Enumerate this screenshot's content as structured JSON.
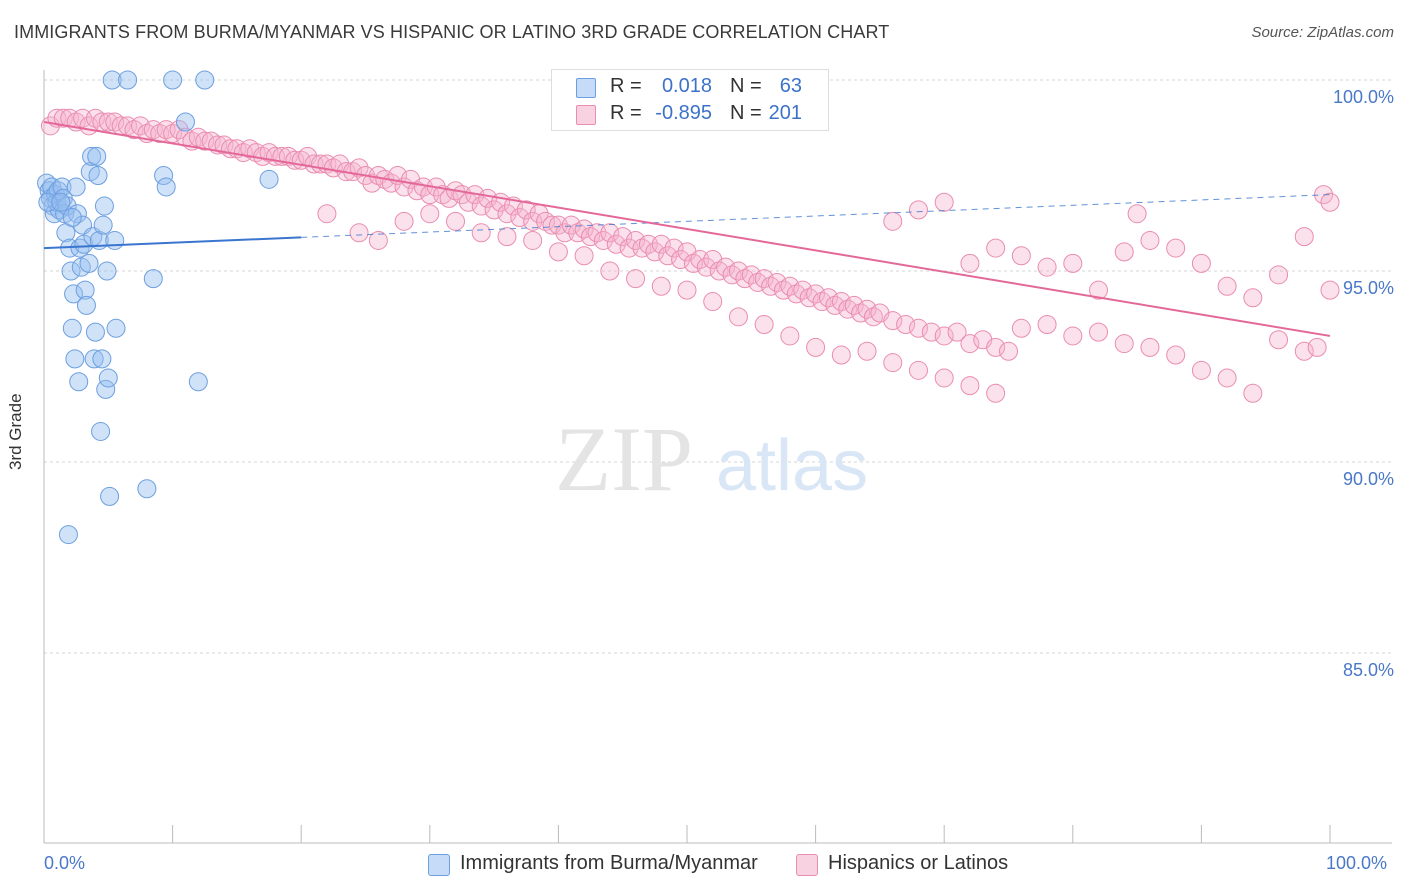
{
  "header": {
    "title": "IMMIGRANTS FROM BURMA/MYANMAR VS HISPANIC OR LATINO 3RD GRADE CORRELATION CHART",
    "source": "Source: ZipAtlas.com"
  },
  "watermark": {
    "zip": "ZIP",
    "atlas": "atlas"
  },
  "legend": {
    "rows": [
      {
        "r_label": "R =",
        "r_value": "0.018",
        "n_label": "N =",
        "n_value": "63"
      },
      {
        "r_label": "R =",
        "r_value": "-0.895",
        "n_label": "N =",
        "n_value": "201"
      }
    ]
  },
  "bottom_legend": {
    "series1": "Immigrants from Burma/Myanmar",
    "series2": "Hispanics or Latinos"
  },
  "axes": {
    "ylabel": "3rd Grade",
    "x_min_label": "0.0%",
    "x_max_label": "100.0%",
    "y_ticks": [
      "100.0%",
      "95.0%",
      "90.0%",
      "85.0%"
    ]
  },
  "colors": {
    "blue": "#6d9fe0",
    "blue_fill": "rgba(150,190,240,0.45)",
    "blue_line": "#3a76cf",
    "pink": "#ea8db0",
    "pink_fill": "rgba(245,180,205,0.4)",
    "pink_line": "#e4679a",
    "tick_text": "#4a78c8"
  },
  "chart_data": {
    "type": "scatter",
    "xlim": [
      0,
      100
    ],
    "ylim": [
      80.5,
      100.5
    ],
    "x_unit": "%",
    "y_unit": "%",
    "grid": true,
    "series": [
      {
        "name": "Immigrants from Burma/Myanmar",
        "r": 0.018,
        "n": 63,
        "trend": {
          "x0": 0,
          "y0": 95.6,
          "x1": 100,
          "y1": 97.0,
          "solid_until": 20
        },
        "points": [
          [
            0.2,
            97.3
          ],
          [
            0.4,
            97.1
          ],
          [
            0.5,
            96.9
          ],
          [
            0.6,
            97.2
          ],
          [
            0.7,
            96.7
          ],
          [
            0.8,
            96.5
          ],
          [
            0.9,
            97.0
          ],
          [
            1.0,
            96.8
          ],
          [
            1.1,
            97.1
          ],
          [
            1.2,
            96.6
          ],
          [
            1.4,
            97.2
          ],
          [
            1.5,
            96.9
          ],
          [
            1.6,
            96.5
          ],
          [
            1.7,
            96.0
          ],
          [
            1.8,
            96.7
          ],
          [
            2.0,
            95.6
          ],
          [
            2.1,
            95.0
          ],
          [
            2.2,
            93.5
          ],
          [
            2.3,
            94.4
          ],
          [
            2.5,
            97.2
          ],
          [
            2.6,
            96.5
          ],
          [
            2.8,
            95.6
          ],
          [
            2.9,
            95.1
          ],
          [
            3.0,
            96.2
          ],
          [
            3.1,
            95.7
          ],
          [
            3.2,
            94.5
          ],
          [
            3.3,
            94.1
          ],
          [
            3.5,
            95.2
          ],
          [
            3.6,
            97.6
          ],
          [
            3.7,
            98.0
          ],
          [
            3.8,
            95.9
          ],
          [
            3.9,
            92.7
          ],
          [
            4.0,
            93.4
          ],
          [
            4.1,
            98.0
          ],
          [
            4.2,
            97.5
          ],
          [
            4.3,
            95.8
          ],
          [
            4.4,
            90.8
          ],
          [
            4.5,
            92.7
          ],
          [
            4.7,
            96.7
          ],
          [
            4.8,
            91.9
          ],
          [
            4.9,
            95.0
          ],
          [
            5.0,
            92.2
          ],
          [
            5.1,
            89.1
          ],
          [
            5.3,
            100.0
          ],
          [
            5.5,
            95.8
          ],
          [
            5.6,
            93.5
          ],
          [
            2.4,
            92.7
          ],
          [
            2.7,
            92.1
          ],
          [
            1.9,
            88.1
          ],
          [
            6.5,
            100.0
          ],
          [
            8.0,
            89.3
          ],
          [
            8.5,
            94.8
          ],
          [
            9.3,
            97.5
          ],
          [
            9.5,
            97.2
          ],
          [
            10.0,
            100.0
          ],
          [
            11.0,
            98.9
          ],
          [
            12.0,
            92.1
          ],
          [
            12.5,
            100.0
          ],
          [
            17.5,
            97.4
          ],
          [
            0.3,
            96.8
          ],
          [
            1.3,
            96.8
          ],
          [
            2.2,
            96.4
          ],
          [
            4.6,
            96.2
          ]
        ]
      },
      {
        "name": "Hispanics or Latinos",
        "r": -0.895,
        "n": 201,
        "trend": {
          "x0": 0,
          "y0": 98.9,
          "x1": 100,
          "y1": 93.3
        },
        "points": [
          [
            0.5,
            98.8
          ],
          [
            1.0,
            99.0
          ],
          [
            1.5,
            99.0
          ],
          [
            2.0,
            99.0
          ],
          [
            2.5,
            98.9
          ],
          [
            3.0,
            99.0
          ],
          [
            3.5,
            98.8
          ],
          [
            4.0,
            99.0
          ],
          [
            4.5,
            98.9
          ],
          [
            5.0,
            98.9
          ],
          [
            5.5,
            98.9
          ],
          [
            6.0,
            98.8
          ],
          [
            6.5,
            98.8
          ],
          [
            7.0,
            98.7
          ],
          [
            7.5,
            98.8
          ],
          [
            8.0,
            98.6
          ],
          [
            8.5,
            98.7
          ],
          [
            9.0,
            98.6
          ],
          [
            9.5,
            98.7
          ],
          [
            10.0,
            98.6
          ],
          [
            10.5,
            98.7
          ],
          [
            11.0,
            98.5
          ],
          [
            11.5,
            98.4
          ],
          [
            12.0,
            98.5
          ],
          [
            12.5,
            98.4
          ],
          [
            13.0,
            98.4
          ],
          [
            13.5,
            98.3
          ],
          [
            14.0,
            98.3
          ],
          [
            14.5,
            98.2
          ],
          [
            15.0,
            98.2
          ],
          [
            15.5,
            98.1
          ],
          [
            16.0,
            98.2
          ],
          [
            16.5,
            98.1
          ],
          [
            17.0,
            98.0
          ],
          [
            17.5,
            98.1
          ],
          [
            18.0,
            98.0
          ],
          [
            18.5,
            98.0
          ],
          [
            19.0,
            98.0
          ],
          [
            19.5,
            97.9
          ],
          [
            20.0,
            97.9
          ],
          [
            20.5,
            98.0
          ],
          [
            21.0,
            97.8
          ],
          [
            21.5,
            97.8
          ],
          [
            22.0,
            97.8
          ],
          [
            22.5,
            97.7
          ],
          [
            23.0,
            97.8
          ],
          [
            23.5,
            97.6
          ],
          [
            24.0,
            97.6
          ],
          [
            24.5,
            97.7
          ],
          [
            25.0,
            97.5
          ],
          [
            25.5,
            97.3
          ],
          [
            26.0,
            97.5
          ],
          [
            26.5,
            97.4
          ],
          [
            27.0,
            97.3
          ],
          [
            27.5,
            97.5
          ],
          [
            28.0,
            97.2
          ],
          [
            28.5,
            97.4
          ],
          [
            29.0,
            97.1
          ],
          [
            29.5,
            97.2
          ],
          [
            30.0,
            97.0
          ],
          [
            30.5,
            97.2
          ],
          [
            31.0,
            97.0
          ],
          [
            31.5,
            96.9
          ],
          [
            32.0,
            97.1
          ],
          [
            32.5,
            97.0
          ],
          [
            33.0,
            96.8
          ],
          [
            33.5,
            97.0
          ],
          [
            34.0,
            96.7
          ],
          [
            34.5,
            96.9
          ],
          [
            35.0,
            96.6
          ],
          [
            35.5,
            96.8
          ],
          [
            36.0,
            96.5
          ],
          [
            36.5,
            96.7
          ],
          [
            37.0,
            96.4
          ],
          [
            37.5,
            96.6
          ],
          [
            38.0,
            96.3
          ],
          [
            38.5,
            96.5
          ],
          [
            39.0,
            96.3
          ],
          [
            39.5,
            96.2
          ],
          [
            40.0,
            96.2
          ],
          [
            40.5,
            96.0
          ],
          [
            41.0,
            96.2
          ],
          [
            41.5,
            96.0
          ],
          [
            42.0,
            96.1
          ],
          [
            42.5,
            95.9
          ],
          [
            43.0,
            96.0
          ],
          [
            43.5,
            95.8
          ],
          [
            44.0,
            96.0
          ],
          [
            44.5,
            95.7
          ],
          [
            45.0,
            95.9
          ],
          [
            45.5,
            95.6
          ],
          [
            46.0,
            95.8
          ],
          [
            46.5,
            95.6
          ],
          [
            47.0,
            95.7
          ],
          [
            47.5,
            95.5
          ],
          [
            48.0,
            95.7
          ],
          [
            48.5,
            95.4
          ],
          [
            49.0,
            95.6
          ],
          [
            49.5,
            95.3
          ],
          [
            50.0,
            95.5
          ],
          [
            50.5,
            95.2
          ],
          [
            51.0,
            95.3
          ],
          [
            51.5,
            95.1
          ],
          [
            52.0,
            95.3
          ],
          [
            52.5,
            95.0
          ],
          [
            53.0,
            95.1
          ],
          [
            53.5,
            94.9
          ],
          [
            54.0,
            95.0
          ],
          [
            54.5,
            94.8
          ],
          [
            55.0,
            94.9
          ],
          [
            55.5,
            94.7
          ],
          [
            56.0,
            94.8
          ],
          [
            56.5,
            94.6
          ],
          [
            57.0,
            94.7
          ],
          [
            57.5,
            94.5
          ],
          [
            58.0,
            94.6
          ],
          [
            58.5,
            94.4
          ],
          [
            59.0,
            94.5
          ],
          [
            59.5,
            94.3
          ],
          [
            60.0,
            94.4
          ],
          [
            60.5,
            94.2
          ],
          [
            61.0,
            94.3
          ],
          [
            61.5,
            94.1
          ],
          [
            62.0,
            94.2
          ],
          [
            62.5,
            94.0
          ],
          [
            63.0,
            94.1
          ],
          [
            63.5,
            93.9
          ],
          [
            64.0,
            94.0
          ],
          [
            64.5,
            93.8
          ],
          [
            65.0,
            93.9
          ],
          [
            66.0,
            93.7
          ],
          [
            67.0,
            93.6
          ],
          [
            68.0,
            93.5
          ],
          [
            69.0,
            93.4
          ],
          [
            70.0,
            93.3
          ],
          [
            71.0,
            93.4
          ],
          [
            72.0,
            93.1
          ],
          [
            73.0,
            93.2
          ],
          [
            74.0,
            93.0
          ],
          [
            75.0,
            92.9
          ],
          [
            22.0,
            96.5
          ],
          [
            24.5,
            96.0
          ],
          [
            26.0,
            95.8
          ],
          [
            28.0,
            96.3
          ],
          [
            30.0,
            96.5
          ],
          [
            32.0,
            96.3
          ],
          [
            34.0,
            96.0
          ],
          [
            36.0,
            95.9
          ],
          [
            38.0,
            95.8
          ],
          [
            40.0,
            95.5
          ],
          [
            42.0,
            95.4
          ],
          [
            44.0,
            95.0
          ],
          [
            46.0,
            94.8
          ],
          [
            48.0,
            94.6
          ],
          [
            50.0,
            94.5
          ],
          [
            52.0,
            94.2
          ],
          [
            54.0,
            93.8
          ],
          [
            56.0,
            93.6
          ],
          [
            58.0,
            93.3
          ],
          [
            60.0,
            93.0
          ],
          [
            62.0,
            92.8
          ],
          [
            64.0,
            92.9
          ],
          [
            66.0,
            92.6
          ],
          [
            68.0,
            92.4
          ],
          [
            70.0,
            92.2
          ],
          [
            72.0,
            92.0
          ],
          [
            74.0,
            91.8
          ],
          [
            76.0,
            93.5
          ],
          [
            78.0,
            93.6
          ],
          [
            80.0,
            93.3
          ],
          [
            82.0,
            93.4
          ],
          [
            84.0,
            93.1
          ],
          [
            86.0,
            93.0
          ],
          [
            88.0,
            92.8
          ],
          [
            90.0,
            92.4
          ],
          [
            92.0,
            92.2
          ],
          [
            94.0,
            91.8
          ],
          [
            96.0,
            93.2
          ],
          [
            98.0,
            92.9
          ],
          [
            99.0,
            93.0
          ],
          [
            66.0,
            96.3
          ],
          [
            68.0,
            96.6
          ],
          [
            70.0,
            96.8
          ],
          [
            72.0,
            95.2
          ],
          [
            74.0,
            95.6
          ],
          [
            76.0,
            95.4
          ],
          [
            78.0,
            95.1
          ],
          [
            80.0,
            95.2
          ],
          [
            82.0,
            94.5
          ],
          [
            84.0,
            95.5
          ],
          [
            86.0,
            95.8
          ],
          [
            88.0,
            95.6
          ],
          [
            90.0,
            95.2
          ],
          [
            92.0,
            94.6
          ],
          [
            94.0,
            94.3
          ],
          [
            96.0,
            94.9
          ],
          [
            98.0,
            95.9
          ],
          [
            99.5,
            97.0
          ],
          [
            100.0,
            96.8
          ],
          [
            100.0,
            94.5
          ],
          [
            85.0,
            96.5
          ]
        ]
      }
    ]
  }
}
